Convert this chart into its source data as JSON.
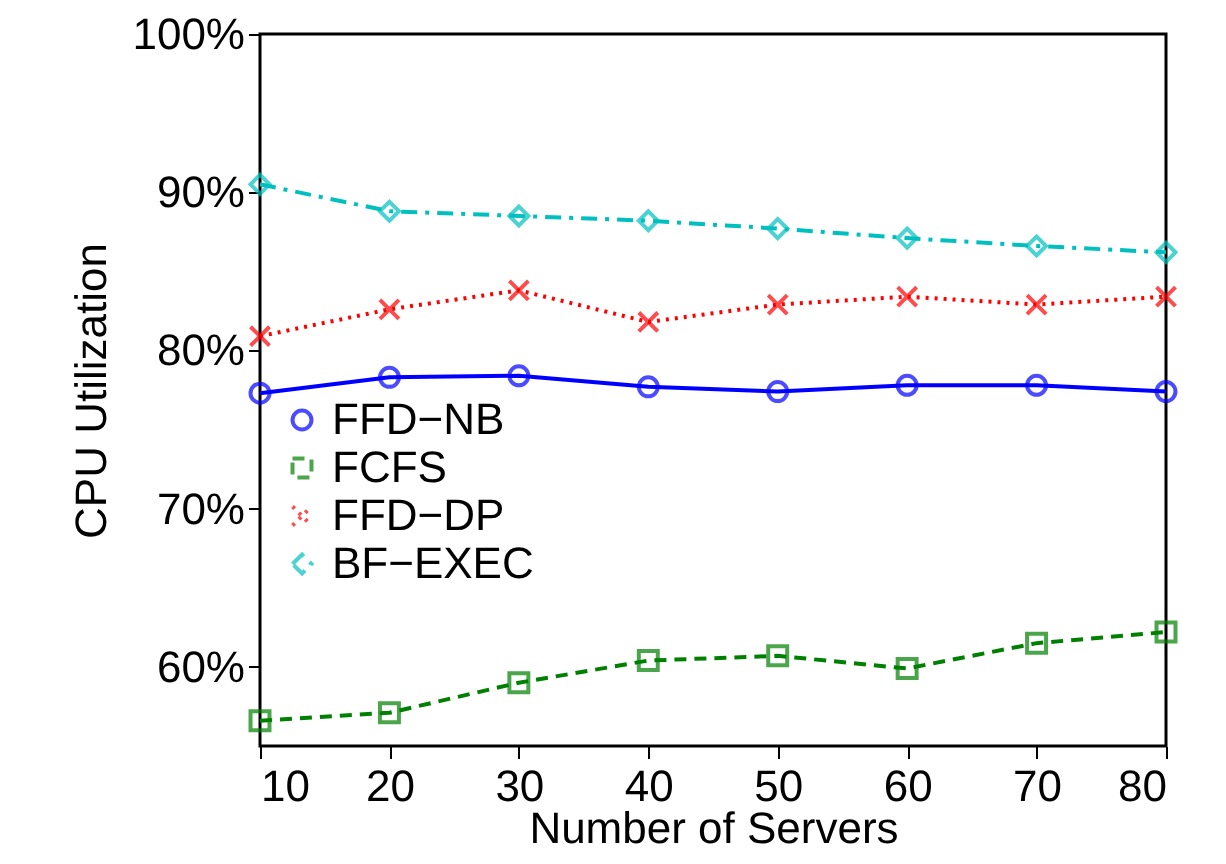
{
  "chart_data": {
    "type": "line",
    "xlabel": "Number of Servers",
    "ylabel": "CPU Utilization",
    "x": [
      10,
      20,
      30,
      40,
      50,
      60,
      70,
      80
    ],
    "xlim": [
      10,
      80
    ],
    "xticks": [
      10,
      20,
      30,
      40,
      50,
      60,
      70,
      80
    ],
    "ylim": [
      55,
      100
    ],
    "yticks": [
      {
        "value": 60,
        "label": "60%"
      },
      {
        "value": 70,
        "label": "70%"
      },
      {
        "value": 80,
        "label": "80%"
      },
      {
        "value": 90,
        "label": "90%"
      },
      {
        "value": 100,
        "label": "100%"
      }
    ],
    "grid": false,
    "legend": "left",
    "series": [
      {
        "name": "FFD−NB",
        "color": "#0000ff",
        "marker": "circle",
        "line_style": "solid",
        "values": [
          77.3,
          78.3,
          78.4,
          77.7,
          77.4,
          77.8,
          77.8,
          77.4
        ]
      },
      {
        "name": "FCFS",
        "color": "#008000",
        "marker": "square",
        "line_style": "dashed",
        "values": [
          56.6,
          57.1,
          59.0,
          60.4,
          60.7,
          59.9,
          61.5,
          62.2
        ]
      },
      {
        "name": "FFD−DP",
        "color": "#ff0000",
        "marker": "cross",
        "line_style": "dotted",
        "values": [
          80.9,
          82.6,
          83.8,
          81.8,
          82.9,
          83.4,
          82.9,
          83.4
        ]
      },
      {
        "name": "BF−EXEC",
        "color": "#00bfbf",
        "marker": "diamond",
        "line_style": "dashdot",
        "values": [
          90.5,
          88.8,
          88.5,
          88.2,
          87.7,
          87.1,
          86.6,
          86.2
        ]
      }
    ]
  }
}
